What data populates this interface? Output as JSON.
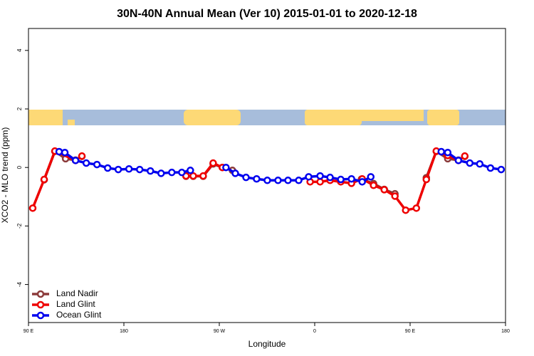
{
  "chart_data": {
    "type": "line",
    "title": "30N-40N Annual Mean (Ver 10)   2015-01-01 to 2020-12-18",
    "x_label": "Longitude",
    "y_label": "XCO2 - MLO trend (ppm)",
    "xlim": [
      90,
      540
    ],
    "ylim": [
      -5.3,
      4.75
    ],
    "xticks": [
      {
        "value": 90,
        "label": "90 E"
      },
      {
        "value": 180,
        "label": "180"
      },
      {
        "value": 270,
        "label": "90 W"
      },
      {
        "value": 360,
        "label": "0"
      },
      {
        "value": 450,
        "label": "90 E"
      },
      {
        "value": 540,
        "label": "180"
      }
    ],
    "yticks": [
      -4,
      -2,
      0,
      2,
      4
    ],
    "legend": "bottomleft",
    "series": [
      {
        "name": "Land Nadir",
        "color": "#8b3a3a",
        "x": [
          104.8,
          114.9,
          125,
          134.4,
          140.4,
          null,
          238.6,
          245.4,
          254.8,
          264.2,
          272.9,
          282.4,
          null,
          404.1,
          415.5,
          425.6,
          435.7,
          null,
          465.3,
          474.7,
          485.5,
          495.6,
          501.6
        ],
        "values": [
          -0.42,
          0.55,
          0.3,
          0.25,
          0.38,
          null,
          -0.3,
          -0.3,
          -0.3,
          0.12,
          0,
          -0.1,
          null,
          -0.4,
          -0.55,
          -0.75,
          -0.9,
          null,
          -0.35,
          0.55,
          0.3,
          0.25,
          0.38
        ]
      },
      {
        "name": "Land Glint",
        "color": "#ee0000",
        "x": [
          94,
          104.8,
          114.9,
          134.4,
          140.4,
          null,
          238.6,
          245.4,
          254.8,
          264.2,
          272.9,
          null,
          355.7,
          365.1,
          374.5,
          384.6,
          394.7,
          404.8,
          415.5,
          425.6,
          435.7,
          445.8,
          455.9,
          465.3,
          474.7,
          485.5,
          495.6,
          501.6
        ],
        "values": [
          -1.39,
          -0.41,
          0.56,
          0.24,
          0.39,
          null,
          -0.29,
          -0.29,
          -0.29,
          0.15,
          0,
          null,
          -0.49,
          -0.49,
          -0.44,
          -0.49,
          -0.54,
          -0.39,
          -0.61,
          -0.76,
          -0.98,
          -1.46,
          -1.39,
          -0.41,
          0.56,
          0.41,
          0.24,
          0.39
        ]
      },
      {
        "name": "Ocean Glint",
        "color": "#0000ee",
        "x": [
          118.9,
          124.3,
          134.4,
          144.5,
          154.6,
          164.7,
          174.7,
          184.8,
          194.9,
          205,
          215.1,
          225.2,
          234.6,
          242.7,
          null,
          276.3,
          285.1,
          295.2,
          305.2,
          315.3,
          325.4,
          334.8,
          344.9,
          354.3,
          365.1,
          374.5,
          384.6,
          394.7,
          404.8,
          412.9,
          null,
          479.4,
          485.5,
          495.6,
          506.3,
          515.7,
          525.8,
          535.9
        ],
        "values": [
          0.54,
          0.51,
          0.24,
          0.15,
          0.1,
          -0.02,
          -0.07,
          -0.05,
          -0.07,
          -0.12,
          -0.2,
          -0.17,
          -0.17,
          -0.1,
          null,
          0,
          -0.2,
          -0.34,
          -0.39,
          -0.44,
          -0.44,
          -0.44,
          -0.44,
          -0.32,
          -0.29,
          -0.34,
          -0.41,
          -0.39,
          -0.49,
          -0.32,
          null,
          0.54,
          0.51,
          0.24,
          0.15,
          0.12,
          -0.02,
          -0.07
        ]
      }
    ]
  }
}
